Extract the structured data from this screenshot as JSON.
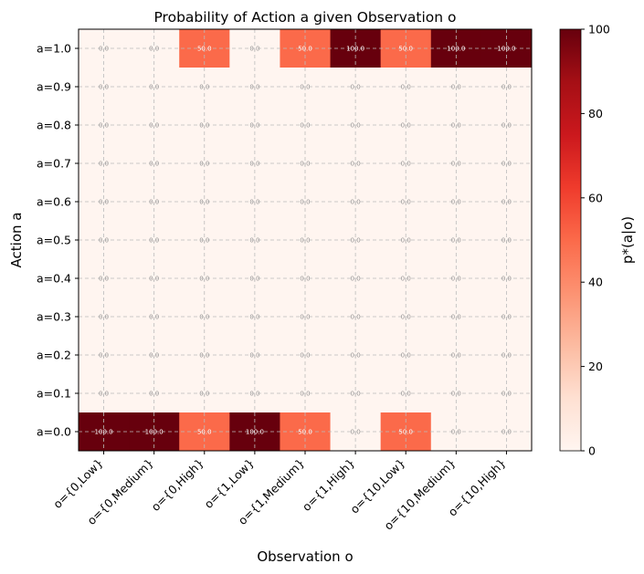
{
  "chart_data": {
    "type": "heatmap",
    "title": "Probability of Action a given Observation o",
    "xlabel": "Observation o",
    "ylabel": "Action a",
    "colorbar_label": "p*(a|o)",
    "colormap": "Reds",
    "vmin": 0,
    "vmax": 100,
    "colorbar_ticks": [
      "0",
      "20",
      "40",
      "60",
      "80",
      "100"
    ],
    "grid": true,
    "x_categories": [
      "o={0,Low}",
      "o={0,Medium}",
      "o={0,High}",
      "o={1,Low}",
      "o={1,Medium}",
      "o={1,High}",
      "o={10,Low}",
      "o={10,Medium}",
      "o={10,High}"
    ],
    "y_categories": [
      "a=1.0",
      "a=0.9",
      "a=0.8",
      "a=0.7",
      "a=0.6",
      "a=0.5",
      "a=0.4",
      "a=0.3",
      "a=0.2",
      "a=0.1",
      "a=0.0"
    ],
    "values": [
      [
        0,
        0,
        50,
        0,
        50,
        100,
        50,
        100,
        100
      ],
      [
        0,
        0,
        0,
        0,
        0,
        0,
        0,
        0,
        0
      ],
      [
        0,
        0,
        0,
        0,
        0,
        0,
        0,
        0,
        0
      ],
      [
        0,
        0,
        0,
        0,
        0,
        0,
        0,
        0,
        0
      ],
      [
        0,
        0,
        0,
        0,
        0,
        0,
        0,
        0,
        0
      ],
      [
        0,
        0,
        0,
        0,
        0,
        0,
        0,
        0,
        0
      ],
      [
        0,
        0,
        0,
        0,
        0,
        0,
        0,
        0,
        0
      ],
      [
        0,
        0,
        0,
        0,
        0,
        0,
        0,
        0,
        0
      ],
      [
        0,
        0,
        0,
        0,
        0,
        0,
        0,
        0,
        0
      ],
      [
        0,
        0,
        0,
        0,
        0,
        0,
        0,
        0,
        0
      ],
      [
        100,
        100,
        50,
        100,
        50,
        0,
        50,
        0,
        0
      ]
    ],
    "cell_labels": [
      [
        "0.0",
        "0.0",
        "50.0",
        "0.0",
        "50.0",
        "100.0",
        "50.0",
        "100.0",
        "100.0"
      ],
      [
        "0.0",
        "0.0",
        "0.0",
        "0.0",
        "0.0",
        "0.0",
        "0.0",
        "0.0",
        "0.0"
      ],
      [
        "0.0",
        "0.0",
        "0.0",
        "0.0",
        "0.0",
        "0.0",
        "0.0",
        "0.0",
        "0.0"
      ],
      [
        "0.0",
        "0.0",
        "0.0",
        "0.0",
        "0.0",
        "0.0",
        "0.0",
        "0.0",
        "0.0"
      ],
      [
        "0.0",
        "0.0",
        "0.0",
        "0.0",
        "0.0",
        "0.0",
        "0.0",
        "0.0",
        "0.0"
      ],
      [
        "0.0",
        "0.0",
        "0.0",
        "0.0",
        "0.0",
        "0.0",
        "0.0",
        "0.0",
        "0.0"
      ],
      [
        "0.0",
        "0.0",
        "0.0",
        "0.0",
        "0.0",
        "0.0",
        "0.0",
        "0.0",
        "0.0"
      ],
      [
        "0.0",
        "0.0",
        "0.0",
        "0.0",
        "0.0",
        "0.0",
        "0.0",
        "0.0",
        "0.0"
      ],
      [
        "0.0",
        "0.0",
        "0.0",
        "0.0",
        "0.0",
        "0.0",
        "0.0",
        "0.0",
        "0.0"
      ],
      [
        "0.0",
        "0.0",
        "0.0",
        "0.0",
        "0.0",
        "0.0",
        "0.0",
        "0.0",
        "0.0"
      ],
      [
        "100.0",
        "100.0",
        "50.0",
        "100.0",
        "50.0",
        "0.0",
        "50.0",
        "0.0",
        "0.0"
      ]
    ],
    "colors": {
      "low": "#fff5f0",
      "mid": "#fb6a4a",
      "high": "#67000d",
      "label_light": "#ffffff",
      "label_dark": "#999999",
      "grid": "#bbbbbb"
    }
  }
}
